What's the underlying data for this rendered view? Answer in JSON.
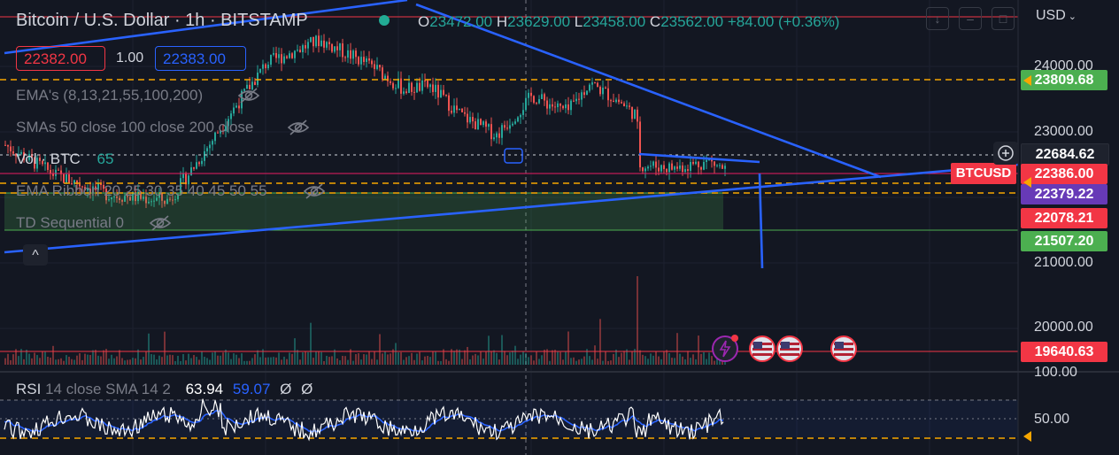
{
  "header": {
    "title": "Bitcoin / U.S. Dollar · 1h · BITSTAMP",
    "ohlc": [
      {
        "k": "O",
        "v": "23472.00"
      },
      {
        "k": "H",
        "v": "23629.00"
      },
      {
        "k": "L",
        "v": "23458.00"
      },
      {
        "k": "C",
        "v": "23562.00"
      }
    ],
    "change": "+84.00 (+0.36%)",
    "sell_price": "22382.00",
    "spread": "1.00",
    "buy_price": "22383.00"
  },
  "legend": {
    "emas": "EMA's (8,13,21,55,100,200)",
    "smas": "SMAs 50 close 100 close 200 close",
    "vol_label": "Vol · BTC",
    "vol_value": "65",
    "ema_ribbon": "EMA Ribbon 20 25 30 35 40 45 50 55",
    "td_sequential": "TD Sequential 0",
    "collapse_glyph": "^"
  },
  "rsi_legend": {
    "label": "RSI",
    "params": "14 close SMA 14 2",
    "value": "63.94",
    "sma_value": "59.07",
    "extra1": "Ø",
    "extra2": "Ø"
  },
  "currency": "USD",
  "price_axis": {
    "ticks": [
      "24000.00",
      "23000.00",
      "21000.00",
      "20000.00"
    ],
    "tags": [
      {
        "label": "23809.68",
        "color": "#4caf50"
      },
      {
        "label": "22684.62",
        "color": "#1e222d"
      },
      {
        "label": "22386.00",
        "color": "#f23645"
      },
      {
        "label": "22379.22",
        "color": "#673ab7"
      },
      {
        "label": "22078.21",
        "color": "#f23645"
      },
      {
        "label": "21507.20",
        "color": "#4caf50"
      },
      {
        "label": "19640.63",
        "color": "#f23645"
      }
    ],
    "symbol_tag": "BTCUSD"
  },
  "rsi_axis": {
    "ticks": [
      "100.00",
      "50.00"
    ]
  },
  "icons": {
    "eye": "eye-off-icon",
    "plus": "plus-circle-icon",
    "flash": "flash-icon",
    "flag": "us-flag-icon"
  },
  "colors": {
    "bull": "#26a69a",
    "bear": "#ef5350",
    "trendline": "#2962ff",
    "level": "#f7a600",
    "rsi": "#ffffff",
    "rsi_sma": "#2962ff",
    "bg": "#131722"
  },
  "chart_data": {
    "type": "candlestick",
    "symbol": "BTCUSD",
    "exchange": "BITSTAMP",
    "interval": "1h",
    "ylim": [
      19500,
      24300
    ],
    "horizontal_levels": [
      23809.68,
      22684.62,
      22386.0,
      22379.22,
      22078.21,
      21507.2,
      19640.63
    ],
    "last_candle": {
      "open": 23472.0,
      "high": 23629.0,
      "low": 23458.0,
      "close": 23562.0
    },
    "rsi": {
      "value": 63.94,
      "sma": 59.07,
      "ticks": [
        100,
        50
      ]
    }
  }
}
